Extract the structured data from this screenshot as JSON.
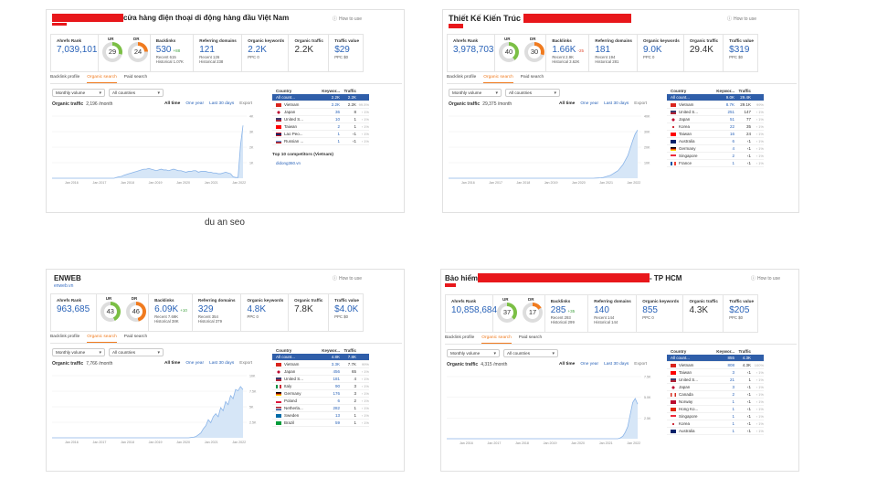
{
  "caption": "du an seo",
  "colors": {
    "accent": "#2a63b8",
    "orange": "#f07b1f",
    "redact": "#e8171b",
    "selected_row": "#2f5ea9",
    "line": "#8ab4e8"
  },
  "common": {
    "how_to_use": "How to use",
    "ahrefs_rank": "Ahrefs Rank",
    "ur": "UR",
    "dr": "DR",
    "backlinks": "Backlinks",
    "ref_domains": "Referring domains",
    "org_keywords": "Organic keywords",
    "org_traffic": "Organic traffic",
    "traffic_value": "Traffic value",
    "tabs": [
      "Backlink profile",
      "Organic search",
      "Paid search"
    ],
    "monthly_volume": "Monthly volume",
    "all_countries": "All countries",
    "organic_traffic_label": "Organic traffic",
    "ranges": [
      "All time",
      "One year",
      "Last 30 days",
      "Export"
    ],
    "col_country": "Country",
    "col_keywords": "Keywor...",
    "col_traffic": "Traffic"
  },
  "cards": [
    {
      "title": "cửa hàng điện thoại di động hàng đầu Việt Nam",
      "title_suffix": "",
      "subtitle": "",
      "rank": "7,039,101",
      "ur": "29",
      "dr": "24",
      "backlinks": "530",
      "backlinks_delta": "+88",
      "backlinks_delta_sign": "pl",
      "backlinks_recent": "Recent 615",
      "backlinks_hist": "Historical 1.07K",
      "refdomains": "121",
      "refdomains_recent": "Recent 126",
      "refdomains_hist": "Historical 238",
      "keywords": "2.2K",
      "keywords_ppc": "PPC 0",
      "traffic": "2.2K",
      "value": "$29",
      "value_ppc": "PPC $0",
      "org_traffic_value": "2,196 /month",
      "yticks": [
        "4K",
        "3K",
        "2K",
        "1K"
      ],
      "xticks": [
        "Jan 2016",
        "Jan 2017",
        "Jan 2018",
        "Jan 2019",
        "Jan 2020",
        "Jan 2021",
        "Jan 2022"
      ],
      "countries": [
        {
          "name": "All count...",
          "kw": "2.2K",
          "tr": "2.2K",
          "pct": "",
          "flag": "none"
        },
        {
          "name": "Vietnam",
          "kw": "2.2K",
          "tr": "2.2K",
          "pct": "99.5%",
          "flag": "vn"
        },
        {
          "name": "Japan",
          "kw": "36",
          "tr": "8",
          "pct": "‹ 1%",
          "flag": "jp"
        },
        {
          "name": "United S...",
          "kw": "10",
          "tr": "1",
          "pct": "‹ 1%",
          "flag": "us"
        },
        {
          "name": "Taiwan",
          "kw": "2",
          "tr": "1",
          "pct": "‹ 1%",
          "flag": "tw"
        },
        {
          "name": "Lao Peo...",
          "kw": "1",
          "tr": "‹1",
          "pct": "‹ 1%",
          "flag": "la"
        },
        {
          "name": "Russian ...",
          "kw": "1",
          "tr": "‹1",
          "pct": "‹ 1%",
          "flag": "ru"
        }
      ],
      "competitors_title": "Top 10 competitors (Vietnam)",
      "competitor": "didong360.vn"
    },
    {
      "title": "Thiết Kế Kiến Trúc",
      "title_suffix": "",
      "subtitle": "",
      "rank": "3,978,703",
      "ur": "40",
      "dr": "30",
      "backlinks": "1.66K",
      "backlinks_delta": "-25",
      "backlinks_delta_sign": "mn",
      "backlinks_recent": "Recent 2.9K",
      "backlinks_hist": "Historical 3.62K",
      "refdomains": "181",
      "refdomains_recent": "Recent 194",
      "refdomains_hist": "Historical 281",
      "keywords": "9.0K",
      "keywords_ppc": "PPC 0",
      "traffic": "29.4K",
      "value": "$319",
      "value_ppc": "PPC $0",
      "org_traffic_value": "29,375 /month",
      "yticks": [
        "40K",
        "30K",
        "20K",
        "10K"
      ],
      "xticks": [
        "Jan 2016",
        "Jan 2017",
        "Jan 2018",
        "Jan 2019",
        "Jan 2020",
        "Jan 2021",
        "Jan 2022"
      ],
      "countries": [
        {
          "name": "All count...",
          "kw": "9.0K",
          "tr": "29.4K",
          "pct": "",
          "flag": "none"
        },
        {
          "name": "Vietnam",
          "kw": "8.7K",
          "tr": "29.1K",
          "pct": "99%",
          "flag": "vn"
        },
        {
          "name": "United S...",
          "kw": "251",
          "tr": "147",
          "pct": "‹ 1%",
          "flag": "us"
        },
        {
          "name": "Japan",
          "kw": "51",
          "tr": "77",
          "pct": "‹ 1%",
          "flag": "jp"
        },
        {
          "name": "Korea",
          "kw": "22",
          "tr": "35",
          "pct": "‹ 1%",
          "flag": "kr"
        },
        {
          "name": "Taiwan",
          "kw": "16",
          "tr": "24",
          "pct": "‹ 1%",
          "flag": "tw"
        },
        {
          "name": "Australia",
          "kw": "6",
          "tr": "‹1",
          "pct": "‹ 1%",
          "flag": "au"
        },
        {
          "name": "Germany",
          "kw": "4",
          "tr": "‹1",
          "pct": "‹ 1%",
          "flag": "de"
        },
        {
          "name": "Singapore",
          "kw": "2",
          "tr": "‹1",
          "pct": "‹ 1%",
          "flag": "sg"
        },
        {
          "name": "France",
          "kw": "1",
          "tr": "‹1",
          "pct": "‹ 1%",
          "flag": "fr"
        }
      ],
      "competitors_title": "",
      "competitor": ""
    },
    {
      "title": "ENWEB",
      "title_suffix": "",
      "subtitle": "enweb.vn",
      "rank": "963,685",
      "ur": "43",
      "dr": "46",
      "backlinks": "6.09K",
      "backlinks_delta": "+10",
      "backlinks_delta_sign": "pl",
      "backlinks_recent": "Recent 7.69K",
      "backlinks_hist": "Historical 38K",
      "refdomains": "329",
      "refdomains_recent": "Recent 354",
      "refdomains_hist": "Historical 379",
      "keywords": "4.8K",
      "keywords_ppc": "PPC 0",
      "traffic": "7.8K",
      "value": "$4.0K",
      "value_ppc": "PPC $0",
      "org_traffic_value": "7,766 /month",
      "yticks": [
        "10K",
        "7.5K",
        "5K",
        "2.5K"
      ],
      "xticks": [
        "Jan 2016",
        "Jan 2017",
        "Jan 2018",
        "Jan 2019",
        "Jan 2020",
        "Jan 2021",
        "Jan 2022"
      ],
      "countries": [
        {
          "name": "All count...",
          "kw": "4.8K",
          "tr": "7.8K",
          "pct": "",
          "flag": "none"
        },
        {
          "name": "Vietnam",
          "kw": "3.3K",
          "tr": "7.7K",
          "pct": "99%",
          "flag": "vn"
        },
        {
          "name": "Japan",
          "kw": "456",
          "tr": "65",
          "pct": "‹ 1%",
          "flag": "jp"
        },
        {
          "name": "United S...",
          "kw": "181",
          "tr": "4",
          "pct": "‹ 1%",
          "flag": "us"
        },
        {
          "name": "Italy",
          "kw": "90",
          "tr": "3",
          "pct": "‹ 1%",
          "flag": "it"
        },
        {
          "name": "Germany",
          "kw": "176",
          "tr": "3",
          "pct": "‹ 1%",
          "flag": "de"
        },
        {
          "name": "Poland",
          "kw": "6",
          "tr": "2",
          "pct": "‹ 1%",
          "flag": "pl"
        },
        {
          "name": "Netherla...",
          "kw": "282",
          "tr": "1",
          "pct": "‹ 1%",
          "flag": "nl"
        },
        {
          "name": "Sweden",
          "kw": "13",
          "tr": "1",
          "pct": "‹ 1%",
          "flag": "se"
        },
        {
          "name": "Brazil",
          "kw": "59",
          "tr": "1",
          "pct": "‹ 1%",
          "flag": "br"
        }
      ],
      "competitors_title": "",
      "competitor": ""
    },
    {
      "title": "Bảo hiểm",
      "title_suffix": "- TP HCM",
      "subtitle": "",
      "rank": "10,858,684",
      "ur": "37",
      "dr": "17",
      "backlinks": "285",
      "backlinks_delta": "+35",
      "backlinks_delta_sign": "pl",
      "backlinks_recent": "Recent 293",
      "backlinks_hist": "Historical 299",
      "refdomains": "140",
      "refdomains_recent": "Recent 144",
      "refdomains_hist": "Historical 144",
      "keywords": "855",
      "keywords_ppc": "PPC 0",
      "traffic": "4.3K",
      "value": "$205",
      "value_ppc": "PPC $0",
      "org_traffic_value": "4,315 /month",
      "yticks": [
        "7.5K",
        "5.0K",
        "2.5K"
      ],
      "xticks": [
        "Jan 2016",
        "Jan 2017",
        "Jan 2018",
        "Jan 2019",
        "Jan 2020",
        "Jan 2021",
        "Jan 2022"
      ],
      "countries": [
        {
          "name": "All count...",
          "kw": "855",
          "tr": "4.3K",
          "pct": "",
          "flag": "none"
        },
        {
          "name": "Vietnam",
          "kw": "808",
          "tr": "4.3K",
          "pct": "100%",
          "flag": "vn"
        },
        {
          "name": "Taiwan",
          "kw": "3",
          "tr": "‹1",
          "pct": "‹ 1%",
          "flag": "tw"
        },
        {
          "name": "United S...",
          "kw": "21",
          "tr": "1",
          "pct": "‹ 1%",
          "flag": "us"
        },
        {
          "name": "Japan",
          "kw": "3",
          "tr": "‹1",
          "pct": "‹ 1%",
          "flag": "jp"
        },
        {
          "name": "Canada",
          "kw": "2",
          "tr": "‹1",
          "pct": "‹ 1%",
          "flag": "ca"
        },
        {
          "name": "Norway",
          "kw": "1",
          "tr": "‹1",
          "pct": "‹ 1%",
          "flag": "no"
        },
        {
          "name": "Hong Ko...",
          "kw": "1",
          "tr": "‹1",
          "pct": "‹ 1%",
          "flag": "hk"
        },
        {
          "name": "Singapore",
          "kw": "1",
          "tr": "‹1",
          "pct": "‹ 1%",
          "flag": "sg"
        },
        {
          "name": "Korea",
          "kw": "1",
          "tr": "‹1",
          "pct": "‹ 1%",
          "flag": "kr"
        },
        {
          "name": "Australia",
          "kw": "1",
          "tr": "‹1",
          "pct": "‹ 1%",
          "flag": "au"
        }
      ],
      "competitors_title": "",
      "competitor": ""
    }
  ],
  "series": [
    [
      0,
      0,
      0,
      0,
      0,
      0,
      0,
      0,
      0,
      0,
      0,
      0,
      0,
      0,
      0,
      0,
      0,
      0,
      0,
      0,
      0,
      0,
      0,
      0,
      0,
      0,
      0.05,
      0.1,
      0.12,
      0.2,
      0.25,
      0.3,
      0.35,
      0.4,
      0.45,
      0.5,
      0.55,
      0.6,
      0.6,
      0.65,
      0.6,
      0.55,
      0.5,
      0.55,
      0.6,
      0.55,
      0.55,
      0.5,
      0.55,
      0.6,
      0.55,
      0.5,
      0.5,
      0.45,
      0.4,
      0.45,
      0.45,
      0.5,
      0.5,
      0.4,
      0.45,
      0.45,
      0.45,
      0.4,
      0.4,
      0.35,
      0.35,
      0.3,
      0.3,
      0.35,
      0.4,
      0.35,
      0.3,
      0.1,
      0.05,
      0.05,
      2.2,
      3.5
    ],
    [
      0,
      0,
      0,
      0,
      0,
      0,
      0,
      0,
      0,
      0,
      0,
      0,
      0,
      0,
      0,
      0,
      0,
      0,
      0,
      0,
      0,
      0,
      0,
      0,
      0,
      0,
      0,
      0,
      0,
      0,
      0,
      0,
      0,
      0,
      0,
      0,
      0,
      0,
      0,
      0,
      0,
      0,
      0,
      0,
      0,
      0,
      0,
      0,
      0,
      0,
      0,
      0,
      0,
      0,
      0,
      0,
      0,
      0,
      0,
      0,
      0.1,
      0.2,
      0.3,
      0.5,
      1,
      1.5,
      2,
      3,
      4,
      5,
      7,
      9,
      12,
      15,
      20,
      25,
      29.4,
      32
    ],
    [
      0,
      0,
      0,
      0,
      0,
      0,
      0,
      0,
      0,
      0,
      0,
      0,
      0,
      0,
      0,
      0,
      0,
      0,
      0,
      0,
      0,
      0,
      0,
      0,
      0,
      0,
      0,
      0,
      0,
      0,
      0,
      0,
      0,
      0,
      0,
      0,
      0,
      0,
      0,
      0,
      0,
      0,
      0,
      0,
      0,
      0,
      0,
      0,
      0,
      0,
      0,
      0,
      0,
      0,
      0,
      0,
      0.05,
      0.1,
      0.2,
      0.5,
      0.8,
      1.5,
      2,
      3,
      2.5,
      3.5,
      4,
      3.5,
      5,
      4.5,
      6,
      5.5,
      7,
      6.5,
      8,
      7.8,
      8.5,
      8
    ],
    [
      0,
      0,
      0,
      0,
      0,
      0,
      0,
      0,
      0,
      0,
      0,
      0,
      0,
      0,
      0,
      0,
      0,
      0,
      0,
      0,
      0,
      0,
      0,
      0,
      0,
      0,
      0,
      0,
      0,
      0,
      0,
      0,
      0,
      0,
      0,
      0,
      0,
      0,
      0,
      0,
      0,
      0,
      0,
      0,
      0,
      0,
      0,
      0,
      0,
      0,
      0,
      0,
      0,
      0,
      0,
      0,
      0,
      0,
      0,
      0,
      0,
      0,
      0,
      0,
      0,
      0,
      0,
      0,
      0,
      0,
      0.1,
      0.3,
      0.8,
      1.5,
      3,
      4.5,
      5,
      4.3
    ]
  ],
  "series_max": [
    4,
    40,
    10,
    7.5
  ]
}
